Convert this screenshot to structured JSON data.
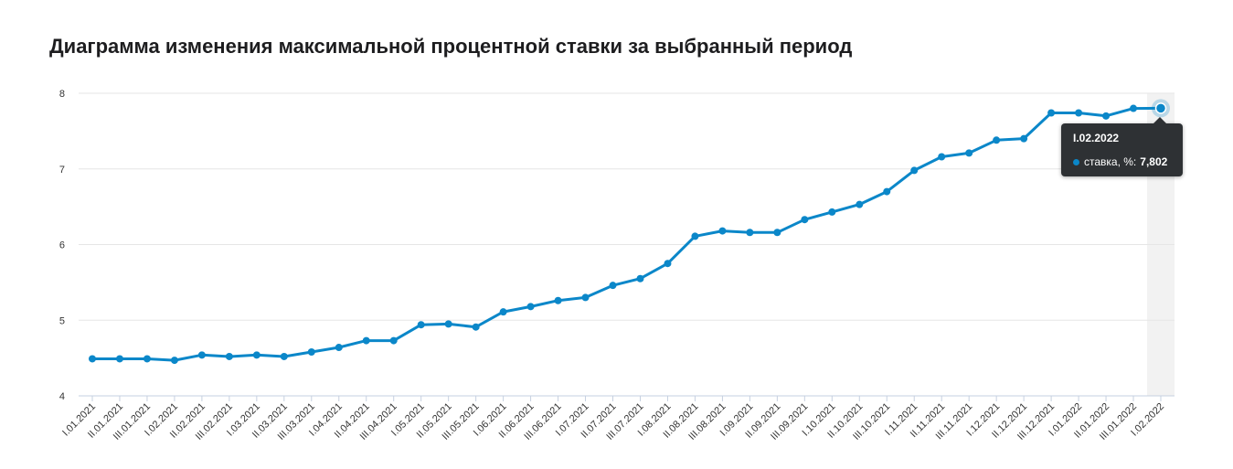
{
  "title": "Диаграмма изменения максимальной процентной ставки за выбранный период",
  "colors": {
    "line": "#0b87c9",
    "hover_band": "#f2f2f2",
    "grid": "#e6e6e6",
    "axis": "#c6d0e0"
  },
  "chart_data": {
    "type": "line",
    "title": "Диаграмма изменения максимальной процентной ставки за выбранный период",
    "xlabel": "",
    "ylabel": "",
    "ylim": [
      4,
      8
    ],
    "yticks": [
      4,
      5,
      6,
      7,
      8
    ],
    "grid": true,
    "categories": [
      "I.01.2021",
      "II.01.2021",
      "III.01.2021",
      "I.02.2021",
      "II.02.2021",
      "III.02.2021",
      "I.03.2021",
      "II.03.2021",
      "III.03.2021",
      "I.04.2021",
      "II.04.2021",
      "III.04.2021",
      "I.05.2021",
      "II.05.2021",
      "III.05.2021",
      "I.06.2021",
      "II.06.2021",
      "III.06.2021",
      "I.07.2021",
      "II.07.2021",
      "III.07.2021",
      "I.08.2021",
      "II.08.2021",
      "III.08.2021",
      "I.09.2021",
      "II.09.2021",
      "III.09.2021",
      "I.10.2021",
      "II.10.2021",
      "III.10.2021",
      "I.11.2021",
      "II.11.2021",
      "III.11.2021",
      "I.12.2021",
      "II.12.2021",
      "III.12.2021",
      "I.01.2022",
      "II.01.2022",
      "III.01.2022",
      "I.02.2022"
    ],
    "series": [
      {
        "name": "ставка, %",
        "values": [
          4.49,
          4.49,
          4.49,
          4.47,
          4.54,
          4.52,
          4.54,
          4.52,
          4.58,
          4.64,
          4.73,
          4.73,
          4.94,
          4.95,
          4.91,
          5.11,
          5.18,
          5.26,
          5.3,
          5.46,
          5.55,
          5.75,
          6.11,
          6.18,
          6.16,
          6.16,
          6.33,
          6.43,
          6.53,
          6.7,
          6.98,
          7.16,
          7.21,
          7.38,
          7.4,
          7.74,
          7.74,
          7.7,
          7.8,
          7.802
        ]
      }
    ]
  },
  "tooltip": {
    "date": "I.02.2022",
    "series_label": "ставка, %:",
    "value": "7,802"
  }
}
